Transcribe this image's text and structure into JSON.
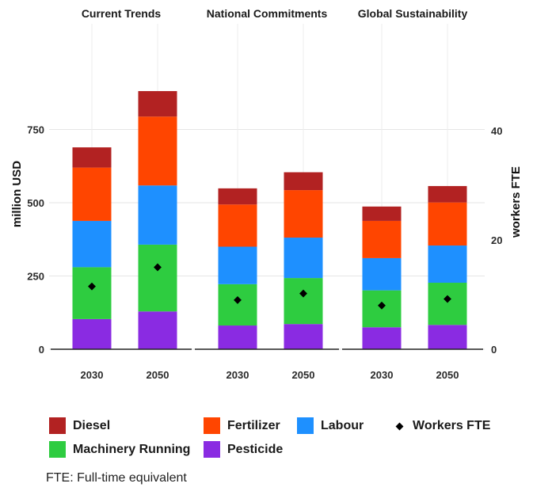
{
  "chart_data": {
    "type": "bar",
    "stacked": true,
    "panels": [
      "Current Trends",
      "National Commitments",
      "Global Sustainability"
    ],
    "categories": [
      "2030",
      "2050"
    ],
    "ylabel": "million USD",
    "ylabel_right": "workers FTE",
    "yticks": [
      0,
      250,
      500,
      750
    ],
    "ylim": [
      0,
      900
    ],
    "yticks_right": [
      0,
      20,
      40
    ],
    "ylim_right": [
      0,
      58.4
    ],
    "grid": true,
    "legend_position": "bottom",
    "series": [
      {
        "name": "Pesticide",
        "color": "#8a2be2",
        "values": [
          [
            103,
            129
          ],
          [
            81,
            86
          ],
          [
            75,
            83
          ]
        ]
      },
      {
        "name": "Machinery Running",
        "color": "#2ecc40",
        "values": [
          [
            177,
            228
          ],
          [
            141,
            157
          ],
          [
            126,
            144
          ]
        ]
      },
      {
        "name": "Labour",
        "color": "#1e90ff",
        "values": [
          [
            158,
            202
          ],
          [
            128,
            138
          ],
          [
            110,
            127
          ]
        ]
      },
      {
        "name": "Fertilizer",
        "color": "#ff4500",
        "values": [
          [
            182,
            235
          ],
          [
            144,
            162
          ],
          [
            127,
            147
          ]
        ]
      },
      {
        "name": "Diesel",
        "color": "#b22222",
        "values": [
          [
            69,
            87
          ],
          [
            55,
            61
          ],
          [
            49,
            56
          ]
        ]
      }
    ],
    "workers_fte": {
      "name": "Workers FTE",
      "values": [
        [
          11.5,
          15.0
        ],
        [
          9.0,
          10.2
        ],
        [
          8.0,
          9.2
        ]
      ]
    }
  },
  "legend": {
    "diesel": "Diesel",
    "fertilizer": "Fertilizer",
    "labour": "Labour",
    "workers": "Workers FTE",
    "machinery": "Machinery Running",
    "pesticide": "Pesticide"
  },
  "footnote": "FTE: Full-time equivalent"
}
